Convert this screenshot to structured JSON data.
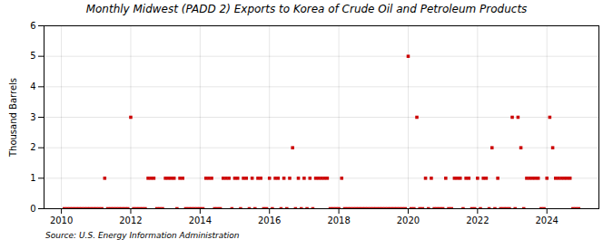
{
  "chart_data": {
    "type": "scatter",
    "title": "Monthly Midwest (PADD 2) Exports to Korea of Crude Oil and Petroleum Products",
    "ylabel": "Thousand Barrels",
    "source": "Source: U.S. Energy Information Administration",
    "color": "#cc0000",
    "marker": "square",
    "grid": true,
    "xlim": [
      2009.5,
      2025.5
    ],
    "xticks": [
      2010,
      2012,
      2014,
      2016,
      2018,
      2020,
      2022,
      2024
    ],
    "ylim": [
      0,
      6
    ],
    "yticks": [
      0,
      1,
      2,
      3,
      4,
      5,
      6
    ],
    "x": [
      2010.083,
      2010.167,
      2010.25,
      2010.333,
      2010.417,
      2010.5,
      2010.583,
      2010.667,
      2010.75,
      2010.833,
      2010.917,
      2011.0,
      2011.083,
      2011.167,
      2011.25,
      2011.333,
      2011.417,
      2011.5,
      2011.583,
      2011.667,
      2011.75,
      2011.833,
      2011.917,
      2012.0,
      2012.083,
      2012.167,
      2012.25,
      2012.333,
      2012.417,
      2012.5,
      2012.583,
      2012.667,
      2012.75,
      2012.833,
      2012.917,
      2013.0,
      2013.083,
      2013.167,
      2013.25,
      2013.333,
      2013.417,
      2013.5,
      2013.583,
      2013.667,
      2013.75,
      2013.833,
      2013.917,
      2014.0,
      2014.083,
      2014.167,
      2014.25,
      2014.333,
      2014.417,
      2014.5,
      2014.583,
      2014.667,
      2014.75,
      2014.833,
      2014.917,
      2015.0,
      2015.083,
      2015.167,
      2015.25,
      2015.333,
      2015.417,
      2015.5,
      2015.583,
      2015.667,
      2015.75,
      2015.833,
      2015.917,
      2016.0,
      2016.083,
      2016.167,
      2016.25,
      2016.333,
      2016.417,
      2016.5,
      2016.583,
      2016.667,
      2016.75,
      2016.833,
      2016.917,
      2017.0,
      2017.083,
      2017.167,
      2017.25,
      2017.333,
      2017.417,
      2017.5,
      2017.583,
      2017.667,
      2017.75,
      2017.833,
      2017.917,
      2018.0,
      2018.083,
      2018.167,
      2018.25,
      2018.333,
      2018.417,
      2018.5,
      2018.583,
      2018.667,
      2018.75,
      2018.833,
      2018.917,
      2019.0,
      2019.083,
      2019.167,
      2019.25,
      2019.333,
      2019.417,
      2019.5,
      2019.583,
      2019.667,
      2019.75,
      2019.833,
      2019.917,
      2020.0,
      2020.083,
      2020.167,
      2020.25,
      2020.333,
      2020.417,
      2020.5,
      2020.583,
      2020.667,
      2020.75,
      2020.833,
      2020.917,
      2021.0,
      2021.083,
      2021.167,
      2021.25,
      2021.333,
      2021.417,
      2021.5,
      2021.583,
      2021.667,
      2021.75,
      2021.833,
      2021.917,
      2022.0,
      2022.083,
      2022.167,
      2022.25,
      2022.333,
      2022.417,
      2022.5,
      2022.583,
      2022.667,
      2022.75,
      2022.833,
      2022.917,
      2023.0,
      2023.083,
      2023.167,
      2023.25,
      2023.333,
      2023.417,
      2023.5,
      2023.583,
      2023.667,
      2023.75,
      2023.833,
      2023.917,
      2024.0,
      2024.083,
      2024.167,
      2024.25,
      2024.333,
      2024.417,
      2024.5,
      2024.583,
      2024.667,
      2024.75,
      2024.833,
      2024.917
    ],
    "values": [
      0,
      0,
      0,
      0,
      0,
      0,
      0,
      0,
      0,
      0,
      0,
      0,
      0,
      0,
      1,
      0,
      0,
      0,
      0,
      0,
      0,
      0,
      0,
      3,
      0,
      0,
      0,
      0,
      0,
      1,
      1,
      1,
      0,
      0,
      0,
      1,
      1,
      1,
      1,
      0,
      1,
      1,
      0,
      0,
      0,
      0,
      0,
      0,
      0,
      1,
      1,
      1,
      0,
      0,
      0,
      1,
      1,
      1,
      0,
      1,
      1,
      0,
      1,
      1,
      0,
      1,
      0,
      1,
      1,
      0,
      0,
      1,
      0,
      1,
      1,
      0,
      1,
      0,
      1,
      2,
      0,
      1,
      0,
      1,
      0,
      1,
      0,
      1,
      1,
      1,
      1,
      1,
      0,
      0,
      0,
      0,
      1,
      0,
      0,
      0,
      0,
      0,
      0,
      0,
      0,
      0,
      0,
      0,
      0,
      0,
      0,
      0,
      0,
      0,
      0,
      0,
      0,
      0,
      0,
      5,
      0,
      0,
      3,
      0,
      0,
      1,
      0,
      1,
      0,
      0,
      0,
      0,
      1,
      0,
      0,
      1,
      1,
      1,
      0,
      1,
      1,
      0,
      0,
      1,
      0,
      1,
      1,
      0,
      2,
      0,
      1,
      0,
      0,
      0,
      0,
      3,
      0,
      3,
      2,
      0,
      1,
      1,
      1,
      1,
      1,
      0,
      0,
      1,
      3,
      2,
      1,
      1,
      1,
      1,
      1,
      1,
      0,
      0,
      0
    ]
  }
}
